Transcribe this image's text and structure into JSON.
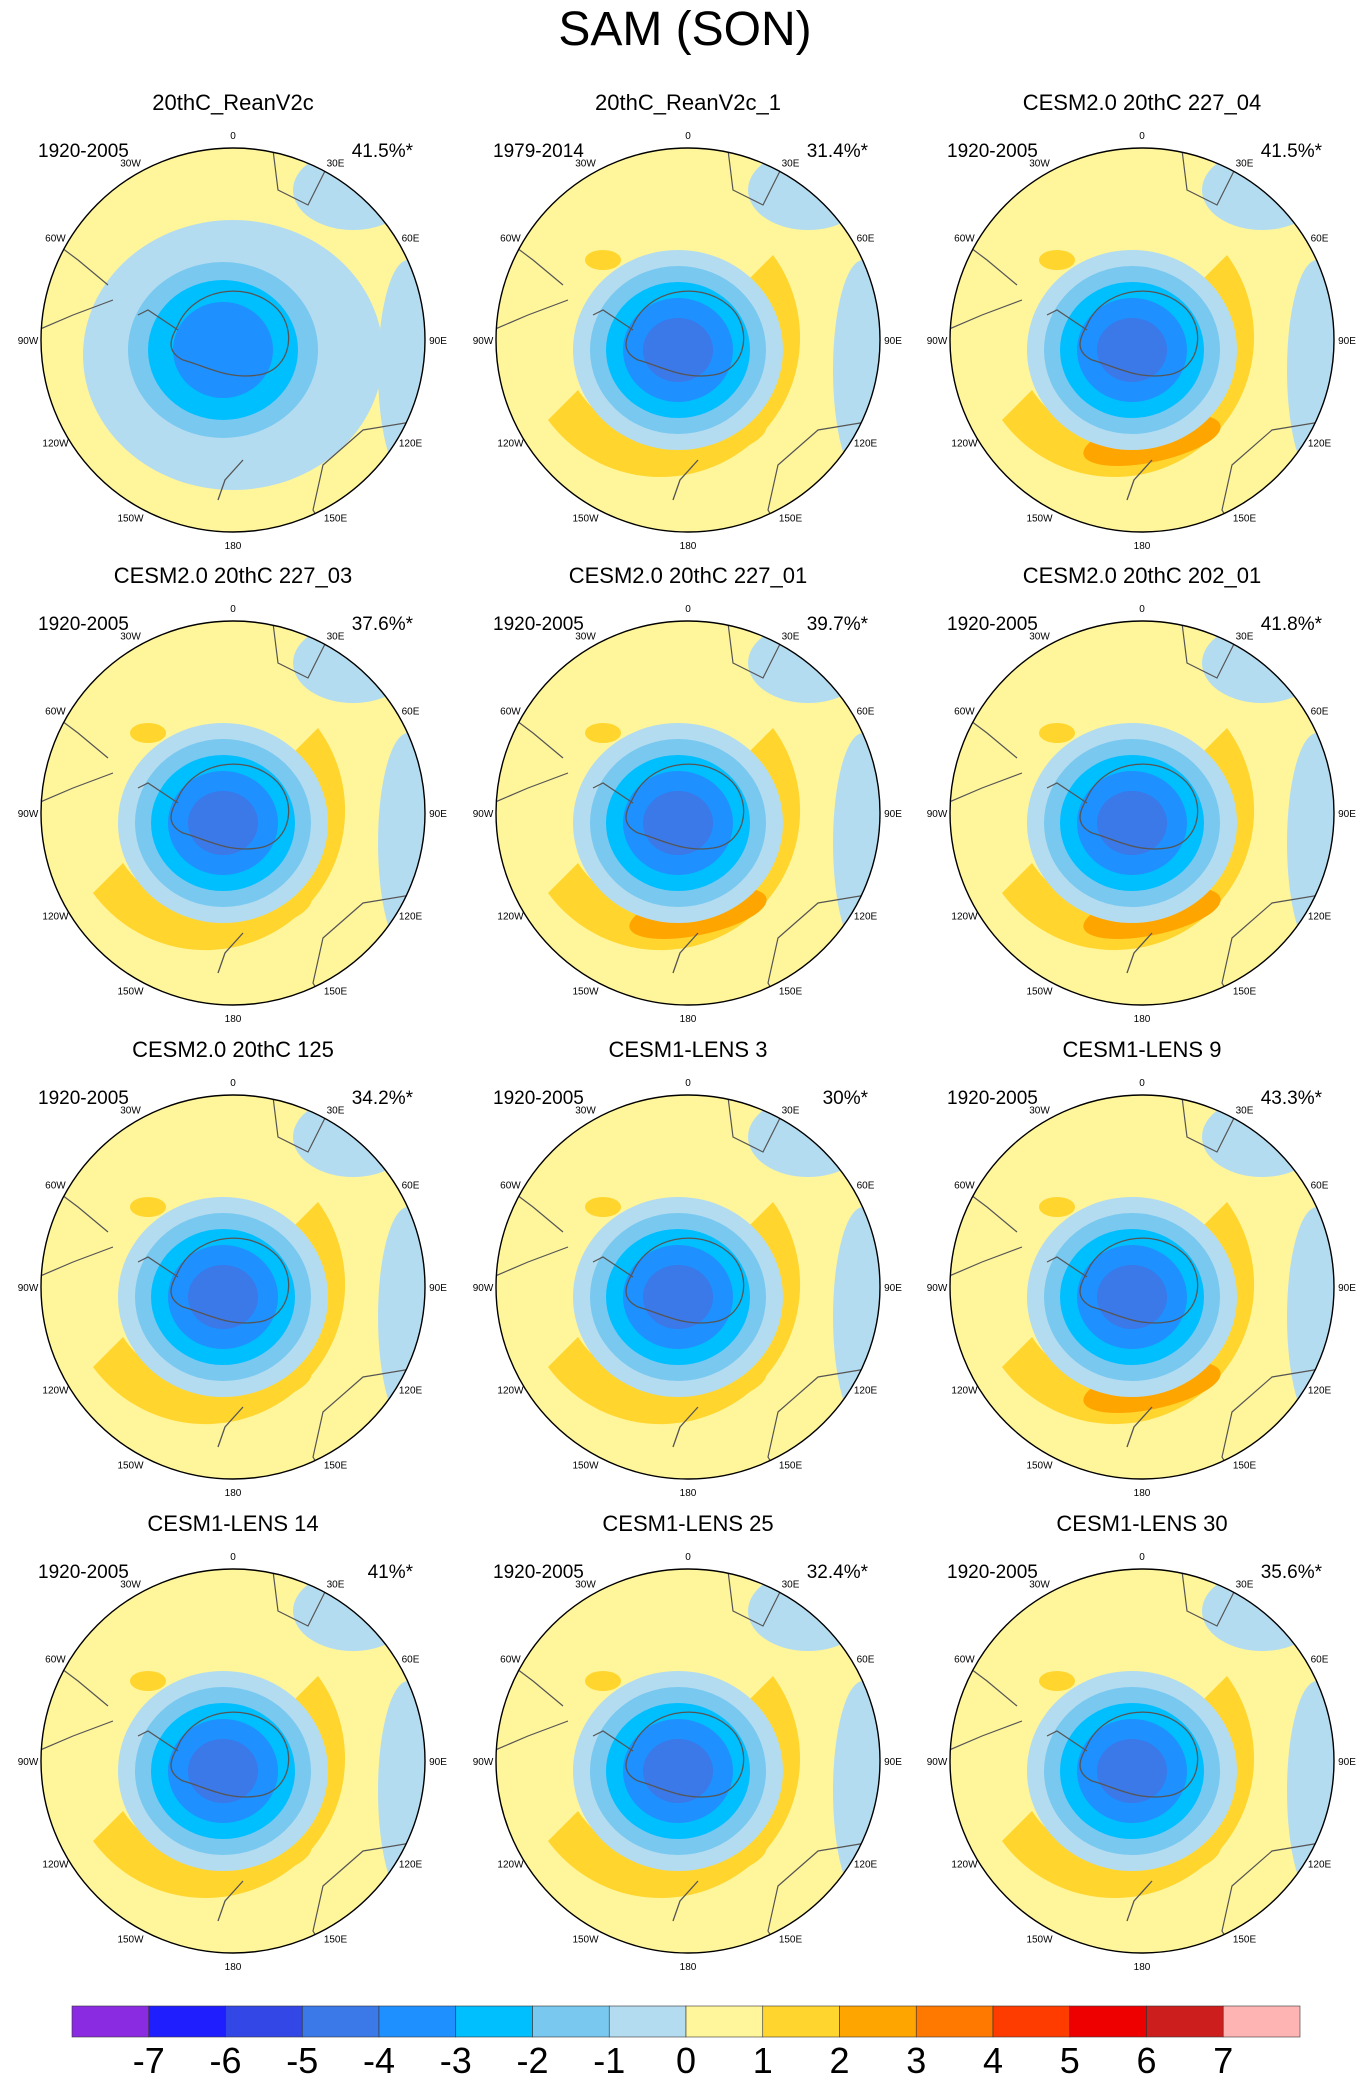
{
  "title": "SAM (SON)",
  "chart_data": {
    "type": "polar-contour-map-grid",
    "title": "SAM (SON)",
    "layout": "4 rows x 3 columns of south-polar stereographic maps",
    "longitude_labels": [
      "0",
      "30E",
      "60E",
      "90E",
      "120E",
      "150E",
      "180",
      "150W",
      "120W",
      "90W",
      "60W",
      "30W"
    ],
    "panels": [
      {
        "title": "20thC_ReanV2c",
        "period": "1920-2005",
        "variance": "41.5%*",
        "pattern": "weak"
      },
      {
        "title": "20thC_ReanV2c_1",
        "period": "1979-2014",
        "variance": "31.4%*",
        "pattern": "medium"
      },
      {
        "title": "CESM2.0 20thC 227_04",
        "period": "1920-2005",
        "variance": "41.5%*",
        "pattern": "strong"
      },
      {
        "title": "CESM2.0 20thC 227_03",
        "period": "1920-2005",
        "variance": "37.6%*",
        "pattern": "medium"
      },
      {
        "title": "CESM2.0 20thC 227_01",
        "period": "1920-2005",
        "variance": "39.7%*",
        "pattern": "strong"
      },
      {
        "title": "CESM2.0 20thC 202_01",
        "period": "1920-2005",
        "variance": "41.8%*",
        "pattern": "strong"
      },
      {
        "title": "CESM2.0 20thC 125",
        "period": "1920-2005",
        "variance": "34.2%*",
        "pattern": "medium"
      },
      {
        "title": "CESM1-LENS 3",
        "period": "1920-2005",
        "variance": "30%*",
        "pattern": "medium"
      },
      {
        "title": "CESM1-LENS 9",
        "period": "1920-2005",
        "variance": "43.3%*",
        "pattern": "strong"
      },
      {
        "title": "CESM1-LENS 14",
        "period": "1920-2005",
        "variance": "41%*",
        "pattern": "medium"
      },
      {
        "title": "CESM1-LENS 25",
        "period": "1920-2005",
        "variance": "32.4%*",
        "pattern": "medium"
      },
      {
        "title": "CESM1-LENS 30",
        "period": "1920-2005",
        "variance": "35.6%*",
        "pattern": "medium"
      }
    ],
    "colorbar": {
      "labels": [
        "-7",
        "-6",
        "-5",
        "-4",
        "-3",
        "-2",
        "-1",
        "0",
        "1",
        "2",
        "3",
        "4",
        "5",
        "6",
        "7"
      ],
      "colors": [
        "#8a2be2",
        "#1e1eff",
        "#3346e6",
        "#3b78e8",
        "#1e90ff",
        "#00bfff",
        "#78c8f0",
        "#b4dcf0",
        "#fff59a",
        "#ffd52e",
        "#ffa500",
        "#ff7800",
        "#ff3c00",
        "#ee0000",
        "#cd1e1e",
        "#ffb4b4"
      ]
    }
  }
}
